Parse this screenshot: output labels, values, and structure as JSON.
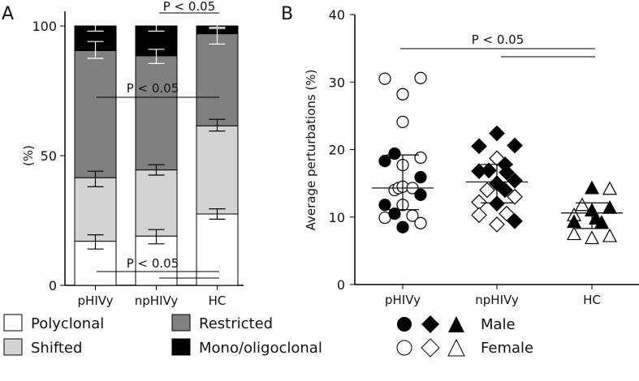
{
  "chart_data": [
    {
      "panel": "A",
      "type": "bar",
      "stacked": true,
      "ylabel": "(%)",
      "ylim": [
        0,
        100
      ],
      "yticks": [
        "0",
        "50",
        "100"
      ],
      "categories": [
        "pHIVy",
        "npHIVy",
        "HC"
      ],
      "series": [
        {
          "name": "Polyclonal",
          "color": "#ffffff",
          "values": [
            17,
            19,
            27.5
          ],
          "err": [
            [
              14,
              19.5
            ],
            [
              16,
              21.5
            ],
            [
              25.5,
              29.5
            ]
          ]
        },
        {
          "name": "Shifted",
          "color": "#d3d3d3",
          "values": [
            24.5,
            25.5,
            34
          ],
          "err": [
            [
              38,
              44
            ],
            [
              42.5,
              46.5
            ],
            [
              59.5,
              64
            ]
          ]
        },
        {
          "name": "Restricted",
          "color": "#808080",
          "values": [
            49,
            44,
            35.5
          ],
          "err": [
            [
              87.5,
              94
            ],
            [
              85.5,
              91
            ],
            [
              93,
              99
            ]
          ]
        },
        {
          "name": "Mono/oligoclonal",
          "color": "#000000",
          "values": [
            9.5,
            11.5,
            3
          ],
          "err": [
            [
              98,
              102
            ],
            [
              98,
              102
            ],
            [
              99.5,
              100.5
            ]
          ]
        }
      ],
      "annotations": [
        "P < 0.05",
        "P < 0.05",
        "P < 0.05"
      ]
    },
    {
      "panel": "B",
      "type": "scatter",
      "ylabel": "Average perturbations (%)",
      "ylim": [
        0,
        40
      ],
      "yticks": [
        "0",
        "10",
        "20",
        "30",
        "40"
      ],
      "categories": [
        "pHIVy",
        "npHIVy",
        "HC"
      ],
      "groups": [
        {
          "name": "pHIVy",
          "marker": "circle",
          "mean": 14.3,
          "sd": [
            11.1,
            19.2
          ],
          "female": [
            30.5,
            30.6,
            28.2,
            24.1,
            18.8,
            17.7,
            14.0,
            14.3,
            14.5,
            14.3,
            11.8,
            9.9,
            10.2,
            9.1
          ],
          "male": [
            18.3,
            19.4,
            15.9,
            13.3,
            11.8,
            10.5,
            8.5
          ]
        },
        {
          "name": "npHIVy",
          "marker": "diamond",
          "mean": 15.2,
          "sd": [
            12.1,
            17.8
          ],
          "female": [
            18.7,
            14.0,
            12.2,
            13.0,
            10.3,
            10.5,
            8.9
          ],
          "male": [
            20.5,
            22.4,
            20.6,
            16.8,
            16.9,
            17.8,
            16.6,
            15.0,
            14.0,
            15.4,
            12.0,
            9.4
          ]
        },
        {
          "name": "HC",
          "marker": "triangle",
          "mean": 10.6,
          "sd": [
            8.3,
            12.1
          ],
          "female": [
            14.2,
            11.8,
            10.3,
            7.5,
            6.9,
            7.2
          ],
          "male": [
            14.3,
            11.4,
            11.0,
            9.3,
            9.8,
            9.2
          ]
        }
      ],
      "annotations": [
        "P < 0.05"
      ]
    }
  ],
  "labels": {
    "panel_a": "A",
    "panel_b": "B",
    "p_text": "P < 0.05"
  },
  "legend": {
    "polyclonal": "Polyclonal",
    "shifted": "Shifted",
    "restricted": "Restricted",
    "mono": "Mono/oligoclonal",
    "male": "Male",
    "female": "Female"
  }
}
